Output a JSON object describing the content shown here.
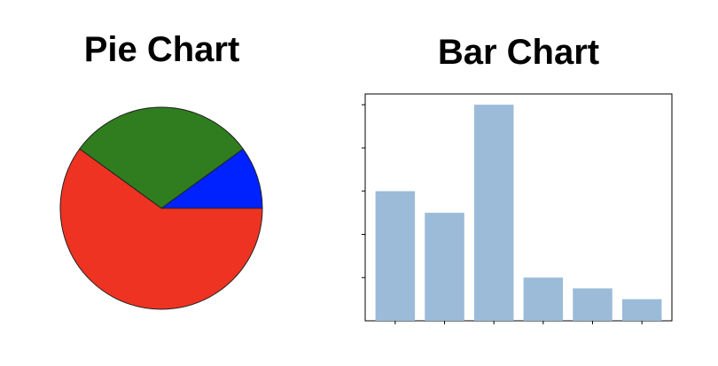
{
  "chart_data": [
    {
      "type": "pie",
      "title": "Pie Chart",
      "slices": [
        {
          "value": 10,
          "color": "#0022ff"
        },
        {
          "value": 30,
          "color": "#2f7d1f"
        },
        {
          "value": 60,
          "color": "#ee3322"
        }
      ],
      "start_angle_deg": 0,
      "direction": "counterclockwise"
    },
    {
      "type": "bar",
      "title": "Bar Chart",
      "categories": [
        "",
        "",
        "",
        "",
        "",
        ""
      ],
      "values": [
        6,
        5,
        10,
        2,
        1.5,
        1
      ],
      "ylim": [
        0,
        10.5
      ],
      "bar_color": "#9bbbd8",
      "xlabel": "",
      "ylabel": "",
      "tick_labels_visible": false,
      "grid": false
    }
  ]
}
